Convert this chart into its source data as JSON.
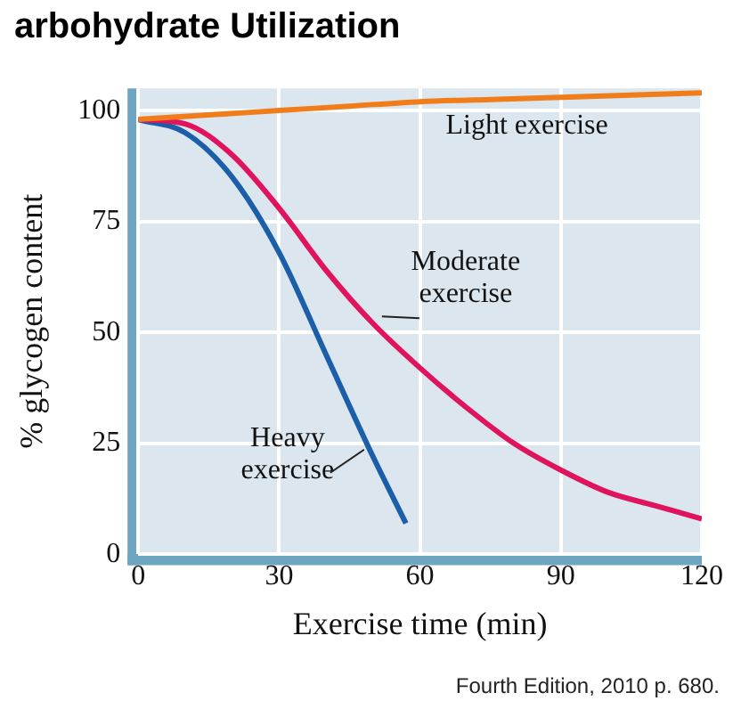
{
  "chart_data": {
    "type": "line",
    "title": "arbohydrate Utilization",
    "xlabel": "Exercise time (min)",
    "ylabel": "% glycogen content",
    "xlim": [
      0,
      120
    ],
    "xticks": [
      0,
      30,
      60,
      90,
      120
    ],
    "ylim": [
      0,
      105
    ],
    "yticks": [
      0,
      25,
      50,
      75,
      100
    ],
    "grid": true,
    "legend": false,
    "marker": "none",
    "series": [
      {
        "name": "Light exercise",
        "color": "#f07d1a",
        "x": [
          0,
          15,
          30,
          45,
          60,
          75,
          90,
          105,
          120
        ],
        "values": [
          98,
          99,
          100,
          101,
          102,
          102.5,
          103,
          103.5,
          104
        ]
      },
      {
        "name": "Moderate exercise",
        "color": "#e0135f",
        "x": [
          0,
          10,
          20,
          30,
          40,
          50,
          60,
          70,
          80,
          90,
          100,
          110,
          120
        ],
        "values": [
          98,
          97,
          90,
          78,
          64,
          52,
          42,
          33,
          25,
          19,
          14,
          11,
          8
        ]
      },
      {
        "name": "Heavy exercise",
        "color": "#1a5fa8",
        "x": [
          0,
          10,
          20,
          30,
          40,
          50,
          57
        ],
        "values": [
          98,
          95,
          85,
          68,
          45,
          22,
          7
        ]
      }
    ],
    "annotations": [
      "Fourth Edition, 2010 p. 680."
    ]
  }
}
